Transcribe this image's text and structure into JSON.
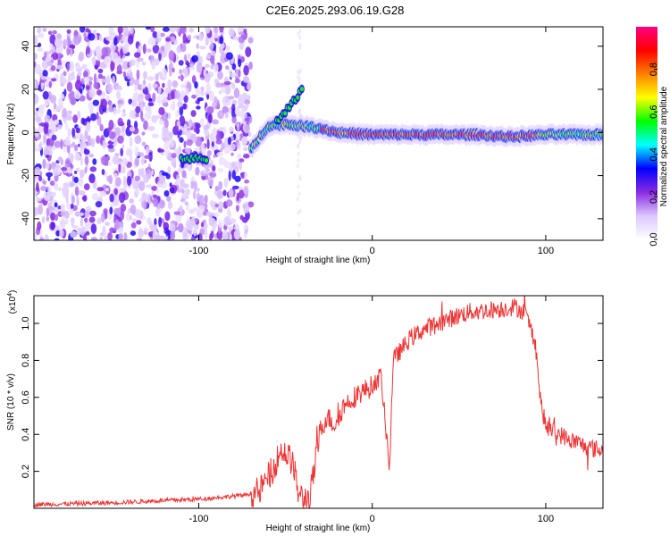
{
  "title": "C2E6.2025.293.06.19.G28",
  "chart_data": [
    {
      "type": "heatmap",
      "name": "spectrogram",
      "xlabel": "Height of straight line (km)",
      "ylabel": "Frequency (Hz)",
      "xlim": [
        -195,
        133
      ],
      "ylim": [
        -50,
        49
      ],
      "xticks": [
        -100,
        0,
        100
      ],
      "xtick_labels": [
        "-100",
        "0",
        "100"
      ],
      "yticks": [
        -40,
        -20,
        0,
        20,
        40
      ],
      "ytick_labels": [
        "-40",
        "-20",
        "0",
        "20",
        "40"
      ],
      "colorbar": {
        "label": "Normalized spectral amplitude",
        "range": [
          0,
          1
        ],
        "ticks": [
          0.0,
          0.2,
          0.4,
          0.6,
          0.8
        ],
        "tick_labels": [
          "0.0",
          "0.2",
          "0.4",
          "0.6",
          "0.8"
        ],
        "colormap": [
          "#ffffff",
          "#dcc6ff",
          "#8a2be2",
          "#0000ff",
          "#00ffff",
          "#00ff00",
          "#ffff00",
          "#ff8000",
          "#ff0000",
          "#ff0080"
        ]
      },
      "noise_region_x": [
        -195,
        -70
      ],
      "signal_track": {
        "x": [
          -70,
          -60,
          -50,
          -40,
          -30,
          -20,
          0,
          20,
          40,
          60,
          80,
          100,
          133
        ],
        "freq": [
          -8,
          3,
          4,
          3,
          2,
          0,
          -1,
          -1,
          -1,
          -1,
          -2,
          -1,
          -1
        ]
      },
      "features": [
        {
          "x": [
            -110,
            -95
          ],
          "freq": -12
        },
        {
          "x": [
            -55,
            -40
          ],
          "freq": [
            5,
            20
          ]
        }
      ]
    },
    {
      "type": "line",
      "name": "snr",
      "xlabel": "Height of straight line (km)",
      "ylabel": "SNR (10 * v/v)",
      "y_multiplier": "(x10",
      "y_multiplier_exp": "4",
      "y_multiplier_close": ")",
      "xlim": [
        -195,
        133
      ],
      "ylim": [
        0,
        1.15
      ],
      "xticks": [
        -100,
        0,
        100
      ],
      "xtick_labels": [
        "-100",
        "0",
        "100"
      ],
      "yticks": [
        0.2,
        0.4,
        0.6,
        0.8,
        1.0
      ],
      "ytick_labels": [
        "0.2",
        "0.4",
        "0.6",
        "0.8",
        "1.0"
      ],
      "series": [
        {
          "name": "SNR",
          "color": "#ee3333",
          "x": [
            -195,
            -150,
            -100,
            -75,
            -65,
            -58,
            -52,
            -46,
            -42,
            -36,
            -30,
            -26,
            -22,
            -16,
            -8,
            0,
            5,
            10,
            12,
            16,
            22,
            30,
            38,
            46,
            55,
            65,
            75,
            82,
            88,
            94,
            97,
            100,
            108,
            116,
            125,
            133
          ],
          "y": [
            0.02,
            0.03,
            0.05,
            0.07,
            0.09,
            0.2,
            0.32,
            0.25,
            0.06,
            0.05,
            0.42,
            0.5,
            0.45,
            0.56,
            0.62,
            0.66,
            0.72,
            0.22,
            0.8,
            0.85,
            0.92,
            0.97,
            1.0,
            1.03,
            1.06,
            1.07,
            1.08,
            1.09,
            1.06,
            0.9,
            0.58,
            0.44,
            0.4,
            0.36,
            0.33,
            0.31
          ]
        }
      ]
    }
  ]
}
